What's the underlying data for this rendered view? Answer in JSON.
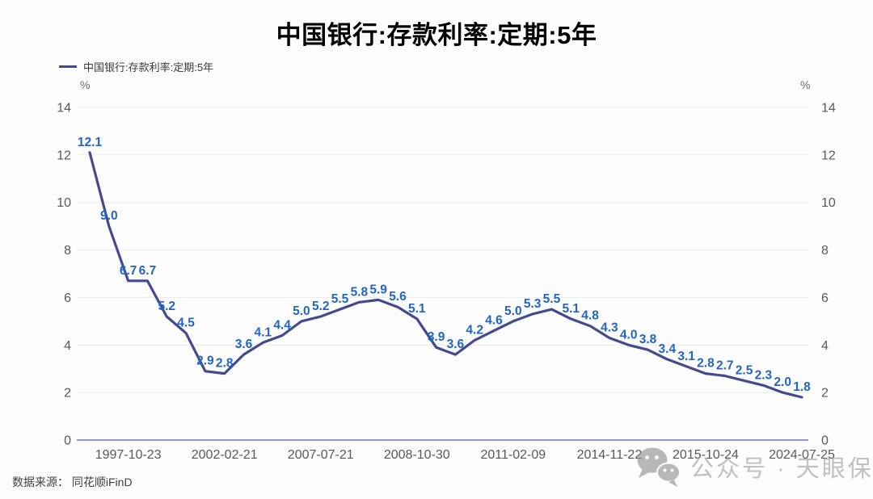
{
  "title": "中国银行:存款利率:定期:5年",
  "legend": {
    "label": "中国银行:存款利率:定期:5年"
  },
  "source": {
    "text": "数据来源： 同花顺iFinD"
  },
  "watermark": {
    "text": "公众号 · 天眼保",
    "icon": "wechat-icon"
  },
  "colors": {
    "line": "#434a8f",
    "data_label": "#2166c4",
    "axis_text": "#595959",
    "grid": "#eaeaea",
    "axis_line": "#9095c2",
    "title": "#000000",
    "watermark": "#9b9b9b"
  },
  "chart_data": {
    "type": "line",
    "title": "中国银行:存款利率:定期:5年",
    "legend_entries": [
      "中国银行:存款利率:定期:5年"
    ],
    "legend_position": "top-left",
    "grid": true,
    "n_points": 38,
    "series": [
      {
        "name": "中国银行:存款利率:定期:5年",
        "values": [
          12.1,
          9.0,
          6.7,
          6.7,
          5.2,
          4.5,
          2.9,
          2.8,
          3.6,
          4.1,
          4.4,
          5.0,
          5.2,
          5.5,
          5.8,
          5.9,
          5.6,
          5.1,
          3.9,
          3.6,
          4.2,
          4.6,
          5.0,
          5.3,
          5.5,
          5.1,
          4.8,
          4.3,
          4.0,
          3.8,
          3.4,
          3.1,
          2.8,
          2.7,
          2.5,
          2.3,
          2.0,
          1.8
        ]
      }
    ],
    "data_labels_visible": true,
    "data_label_decimals": 1,
    "x_ticks": [
      {
        "index": 2,
        "label": "1997-10-23"
      },
      {
        "index": 7,
        "label": "2002-02-21"
      },
      {
        "index": 12,
        "label": "2007-07-21"
      },
      {
        "index": 17,
        "label": "2008-10-30"
      },
      {
        "index": 22,
        "label": "2011-02-09"
      },
      {
        "index": 27,
        "label": "2014-11-22"
      },
      {
        "index": 32,
        "label": "2015-10-24"
      },
      {
        "index": 37,
        "label": "2024-07-25"
      }
    ],
    "y_axis": {
      "unit": "%",
      "min": 0,
      "max": 14,
      "step": 2,
      "ticks": [
        0,
        2,
        4,
        6,
        8,
        10,
        12,
        14
      ],
      "sides": [
        "left",
        "right"
      ]
    }
  }
}
